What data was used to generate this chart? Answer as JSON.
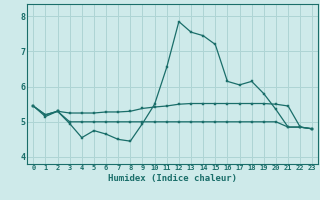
{
  "title": "",
  "xlabel": "Humidex (Indice chaleur)",
  "background_color": "#ceeaea",
  "grid_color": "#aed4d4",
  "line_color": "#1a6e6a",
  "x": [
    0,
    1,
    2,
    3,
    4,
    5,
    6,
    7,
    8,
    9,
    10,
    11,
    12,
    13,
    14,
    15,
    16,
    17,
    18,
    19,
    20,
    21,
    22,
    23
  ],
  "ylim": [
    3.8,
    8.35
  ],
  "xlim": [
    -0.5,
    23.5
  ],
  "yticks": [
    4,
    5,
    6,
    7,
    8
  ],
  "xticks": [
    0,
    1,
    2,
    3,
    4,
    5,
    6,
    7,
    8,
    9,
    10,
    11,
    12,
    13,
    14,
    15,
    16,
    17,
    18,
    19,
    20,
    21,
    22,
    23
  ],
  "line1": [
    5.45,
    5.15,
    5.3,
    4.95,
    4.55,
    4.75,
    4.65,
    4.5,
    4.45,
    4.95,
    5.5,
    6.55,
    7.85,
    7.55,
    7.45,
    7.2,
    6.15,
    6.05,
    6.15,
    5.8,
    5.35,
    4.85,
    4.85,
    4.8
  ],
  "line2": [
    5.45,
    5.2,
    5.3,
    5.25,
    5.25,
    5.25,
    5.28,
    5.28,
    5.3,
    5.38,
    5.42,
    5.45,
    5.5,
    5.52,
    5.52,
    5.52,
    5.52,
    5.52,
    5.52,
    5.52,
    5.5,
    5.45,
    4.85,
    4.8
  ],
  "line3": [
    5.45,
    5.2,
    5.3,
    5.0,
    5.0,
    5.0,
    5.0,
    5.0,
    5.0,
    5.0,
    5.0,
    5.0,
    5.0,
    5.0,
    5.0,
    5.0,
    5.0,
    5.0,
    5.0,
    5.0,
    5.0,
    4.85,
    4.85,
    4.8
  ]
}
